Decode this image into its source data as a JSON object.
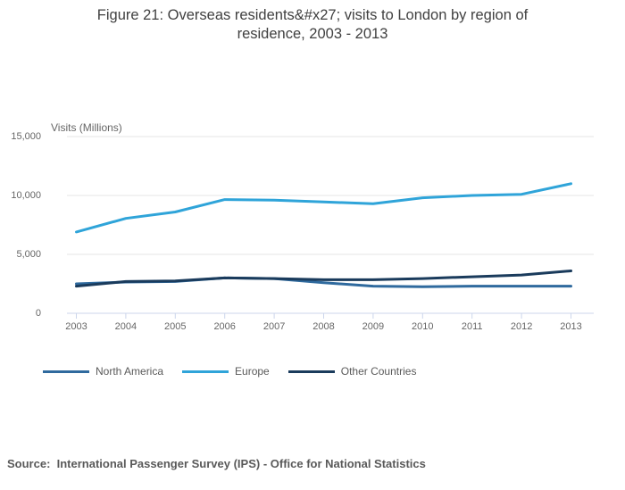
{
  "title": {
    "lines": [
      "Figure 21: Overseas residents&#x27; visits to London by region of",
      "residence, 2003 - 2013"
    ]
  },
  "chart_data": {
    "type": "line",
    "title": "Figure 21: Overseas residents&#x27; visits to London by region of residence, 2003 - 2013",
    "ylabel": "Visits (Millions)",
    "xlabel": "",
    "x": [
      2003,
      2004,
      2005,
      2006,
      2007,
      2008,
      2009,
      2010,
      2011,
      2012,
      2013
    ],
    "series": [
      {
        "name": "North America",
        "color": "#2F6A9E",
        "values": [
          2500,
          2650,
          2700,
          3000,
          2950,
          2600,
          2300,
          2250,
          2300,
          2300,
          2300
        ]
      },
      {
        "name": "Europe",
        "color": "#2FA4D9",
        "values": [
          6900,
          8050,
          8600,
          9650,
          9600,
          9450,
          9300,
          9800,
          10000,
          10100,
          11000
        ]
      },
      {
        "name": "Other Countries",
        "color": "#1A3B5C",
        "values": [
          2300,
          2700,
          2750,
          3000,
          2950,
          2850,
          2850,
          2950,
          3100,
          3250,
          3600
        ]
      }
    ],
    "ylim": [
      0,
      15000
    ],
    "y_ticks": [
      {
        "value": 0,
        "label": "0"
      },
      {
        "value": 5000,
        "label": "5,000"
      },
      {
        "value": 10000,
        "label": "10,000"
      },
      {
        "value": 15000,
        "label": "15,000"
      }
    ],
    "grid": true,
    "legend_position": "bottom-left",
    "grid_color": "#E6E6E6",
    "axis_color": "#CCD6EB",
    "label_color": "#666666"
  },
  "source": {
    "text": "Source:  International Passenger Survey (IPS) - Office for National Statistics"
  }
}
